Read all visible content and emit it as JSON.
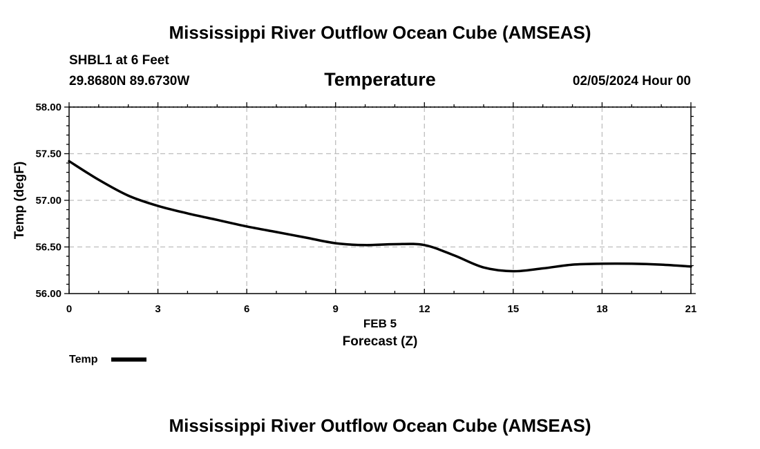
{
  "header": {
    "main_title": "Mississippi River Outflow Ocean Cube (AMSEAS)",
    "station": "SHBL1 at 6 Feet",
    "coordinates": "29.8680N  89.6730W",
    "date": "02/05/2024 Hour 00"
  },
  "footer": {
    "title": "Mississippi River Outflow Ocean Cube (AMSEAS)"
  },
  "chart_data": {
    "type": "line",
    "title": "Temperature",
    "xlabel": "Forecast (Z)",
    "xlabel_date": "FEB 5",
    "ylabel": "Temp (degF)",
    "xlim": [
      0,
      21
    ],
    "ylim": [
      56.0,
      58.0
    ],
    "xticks": [
      0,
      3,
      6,
      9,
      12,
      15,
      18,
      21
    ],
    "xtick_labels": [
      "0",
      "3",
      "6",
      "9",
      "12",
      "15",
      "18",
      "21"
    ],
    "yticks": [
      56.0,
      56.5,
      57.0,
      57.5,
      58.0
    ],
    "ytick_labels": [
      "56.00",
      "56.50",
      "57.00",
      "57.50",
      "58.00"
    ],
    "grid": true,
    "legend_position": "bottom-left",
    "series": [
      {
        "name": "Temp",
        "color": "#000000",
        "x": [
          0,
          1,
          2,
          3,
          4,
          5,
          6,
          7,
          8,
          9,
          10,
          11,
          12,
          13,
          14,
          15,
          16,
          17,
          18,
          19,
          20,
          21
        ],
        "values": [
          57.42,
          57.22,
          57.05,
          56.94,
          56.86,
          56.79,
          56.72,
          56.66,
          56.6,
          56.54,
          56.52,
          56.53,
          56.52,
          56.41,
          56.28,
          56.24,
          56.27,
          56.31,
          56.32,
          56.32,
          56.31,
          56.29
        ]
      }
    ]
  }
}
